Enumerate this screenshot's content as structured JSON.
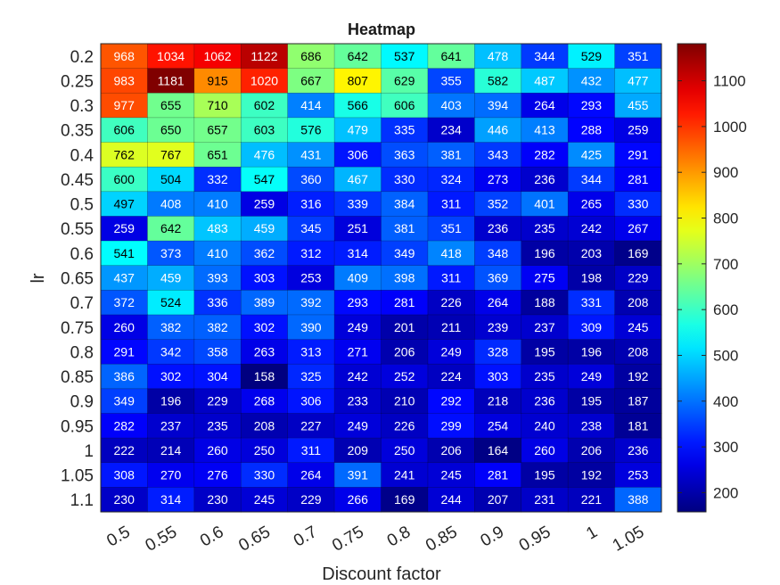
{
  "chart_data": {
    "type": "heatmap",
    "title": "Heatmap",
    "xlabel": "Discount factor",
    "ylabel": "lr",
    "x_categories": [
      "0.5",
      "0.55",
      "0.6",
      "0.65",
      "0.7",
      "0.75",
      "0.8",
      "0.85",
      "0.9",
      "0.95",
      "1",
      "1.05"
    ],
    "y_categories": [
      "0.2",
      "0.25",
      "0.3",
      "0.35",
      "0.4",
      "0.45",
      "0.5",
      "0.55",
      "0.6",
      "0.65",
      "0.7",
      "0.75",
      "0.8",
      "0.85",
      "0.9",
      "0.95",
      "1",
      "1.05",
      "1.1"
    ],
    "values": [
      [
        968,
        1034,
        1062,
        1122,
        686,
        642,
        537,
        641,
        478,
        344,
        529,
        351
      ],
      [
        983,
        1181,
        915,
        1020,
        667,
        807,
        629,
        355,
        582,
        487,
        432,
        477
      ],
      [
        977,
        655,
        710,
        602,
        414,
        566,
        606,
        403,
        394,
        264,
        293,
        455
      ],
      [
        606,
        650,
        657,
        603,
        576,
        479,
        335,
        234,
        446,
        413,
        288,
        259
      ],
      [
        762,
        767,
        651,
        476,
        431,
        306,
        363,
        381,
        343,
        282,
        425,
        291
      ],
      [
        600,
        504,
        332,
        547,
        360,
        467,
        330,
        324,
        273,
        236,
        344,
        281
      ],
      [
        497,
        408,
        410,
        259,
        316,
        339,
        384,
        311,
        352,
        401,
        265,
        330
      ],
      [
        259,
        642,
        483,
        459,
        345,
        251,
        381,
        351,
        236,
        235,
        242,
        267
      ],
      [
        541,
        373,
        410,
        362,
        312,
        314,
        349,
        418,
        348,
        196,
        203,
        169
      ],
      [
        437,
        459,
        393,
        303,
        253,
        409,
        398,
        311,
        369,
        275,
        198,
        229
      ],
      [
        372,
        524,
        336,
        389,
        392,
        293,
        281,
        226,
        264,
        188,
        331,
        208
      ],
      [
        260,
        382,
        382,
        302,
        390,
        249,
        201,
        211,
        239,
        237,
        309,
        245
      ],
      [
        291,
        342,
        358,
        263,
        313,
        271,
        206,
        249,
        328,
        195,
        196,
        208
      ],
      [
        386,
        302,
        304,
        158,
        325,
        242,
        252,
        224,
        303,
        235,
        249,
        192
      ],
      [
        349,
        196,
        229,
        268,
        306,
        233,
        210,
        292,
        218,
        236,
        195,
        187
      ],
      [
        282,
        237,
        235,
        208,
        227,
        249,
        226,
        299,
        254,
        240,
        238,
        181
      ],
      [
        222,
        214,
        260,
        250,
        311,
        209,
        250,
        206,
        164,
        260,
        206,
        236
      ],
      [
        308,
        270,
        276,
        330,
        264,
        391,
        241,
        245,
        281,
        195,
        192,
        253
      ],
      [
        230,
        314,
        230,
        245,
        229,
        266,
        169,
        244,
        207,
        231,
        221,
        388
      ]
    ],
    "colormap": "jet",
    "color_range": [
      158,
      1181
    ],
    "colorbar_ticks": [
      200,
      300,
      400,
      500,
      600,
      700,
      800,
      900,
      1000,
      1100
    ],
    "colorbar_tick_labels": [
      "200",
      "300",
      "400",
      "500",
      "600",
      "700",
      "800",
      "900",
      "1000",
      "1100"
    ],
    "text_colors": {
      "light": "#ffffff",
      "dark": "#000000"
    },
    "grid": true,
    "legend": "colorbar-right"
  }
}
